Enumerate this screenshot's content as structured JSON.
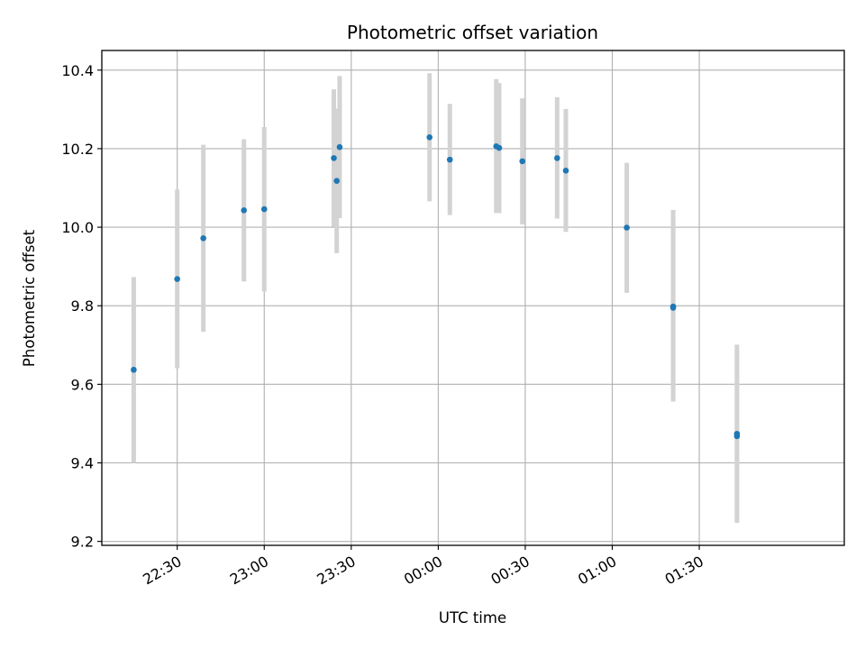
{
  "chart_data": {
    "type": "scatter",
    "title": "Photometric offset variation",
    "xlabel": "UTC time",
    "ylabel": "Photometric offset",
    "x_axis": {
      "kind": "time",
      "range": [
        "22:04",
        "02:20"
      ],
      "ticks": [
        "22:30",
        "23:00",
        "23:30",
        "00:00",
        "00:30",
        "01:00",
        "01:30"
      ]
    },
    "y_axis": {
      "range": [
        9.19,
        10.45
      ],
      "ticks": [
        9.2,
        9.4,
        9.6,
        9.8,
        10.0,
        10.2,
        10.4
      ],
      "tick_labels": [
        "9.2",
        "9.4",
        "9.6",
        "9.8",
        "10.0",
        "10.2",
        "10.4"
      ]
    },
    "grid": true,
    "marker_color": "#1f77b4",
    "errorbar_color": "#d3d3d3",
    "points": [
      {
        "time": "22:15",
        "y": 9.637,
        "low": 9.4,
        "high": 9.873
      },
      {
        "time": "22:30",
        "y": 9.868,
        "low": 9.641,
        "high": 10.096
      },
      {
        "time": "22:39",
        "y": 9.972,
        "low": 9.734,
        "high": 10.21
      },
      {
        "time": "22:53",
        "y": 10.043,
        "low": 9.862,
        "high": 10.224
      },
      {
        "time": "23:00",
        "y": 10.046,
        "low": 9.836,
        "high": 10.255
      },
      {
        "time": "23:24",
        "y": 10.176,
        "low": 10.001,
        "high": 10.351
      },
      {
        "time": "23:25",
        "y": 10.118,
        "low": 9.934,
        "high": 10.302
      },
      {
        "time": "23:26",
        "y": 10.204,
        "low": 10.023,
        "high": 10.385
      },
      {
        "time": "23:57",
        "y": 10.229,
        "low": 10.066,
        "high": 10.392
      },
      {
        "time": "00:04",
        "y": 10.172,
        "low": 10.031,
        "high": 10.314
      },
      {
        "time": "00:20",
        "y": 10.206,
        "low": 10.036,
        "high": 10.377
      },
      {
        "time": "00:21",
        "y": 10.202,
        "low": 10.036,
        "high": 10.367
      },
      {
        "time": "00:29",
        "y": 10.168,
        "low": 10.007,
        "high": 10.328
      },
      {
        "time": "00:41",
        "y": 10.176,
        "low": 10.022,
        "high": 10.331
      },
      {
        "time": "00:44",
        "y": 10.144,
        "low": 9.988,
        "high": 10.301
      },
      {
        "time": "01:05",
        "y": 9.999,
        "low": 9.833,
        "high": 10.164
      },
      {
        "time": "01:21",
        "y": 9.798,
        "low": 9.556,
        "high": 10.044
      },
      {
        "time": "01:21",
        "y": 9.795,
        "low": 9.564,
        "high": 10.026
      },
      {
        "time": "01:43",
        "y": 9.474,
        "low": 9.247,
        "high": 9.701
      },
      {
        "time": "01:43",
        "y": 9.468,
        "low": 9.252,
        "high": 9.685
      }
    ]
  }
}
